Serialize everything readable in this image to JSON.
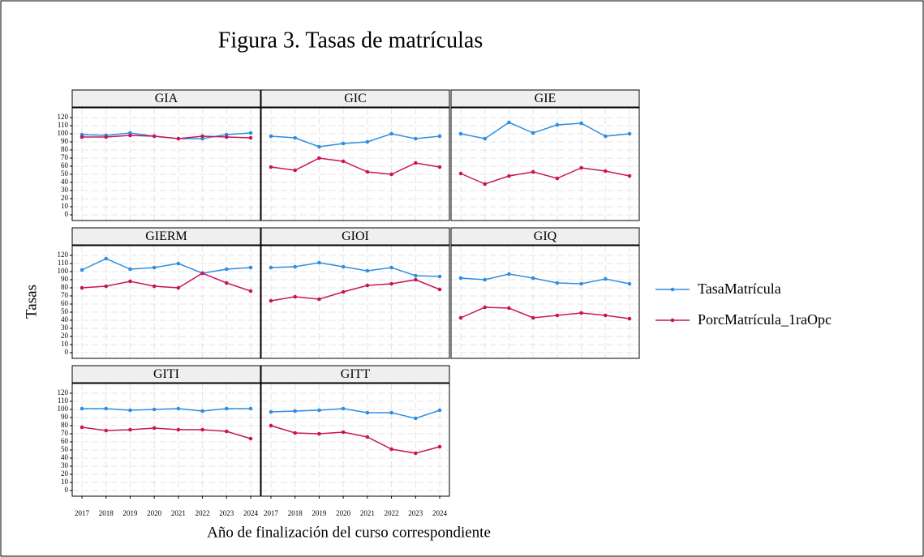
{
  "chart_data": {
    "type": "line",
    "title": "Figura 3. Tasas de matrículas",
    "x_label": "Año de finalización del curso correspondiente",
    "y_label": "Tasas",
    "categories": [
      "2017",
      "2018",
      "2019",
      "2020",
      "2021",
      "2022",
      "2023",
      "2024"
    ],
    "ylim": [
      -7,
      132
    ],
    "yticks": [
      0,
      10,
      20,
      30,
      40,
      50,
      60,
      70,
      80,
      90,
      100,
      110,
      120
    ],
    "grid": true,
    "legend": "right",
    "series_names": [
      "TasaMatrícula",
      "PorcMatrícula_1raOpc"
    ],
    "colors": [
      "#2e8ee0",
      "#c8155a"
    ],
    "panels": [
      {
        "title": "GIA",
        "values": [
          [
            99,
            98,
            101,
            97,
            94,
            94,
            99,
            101
          ],
          [
            96,
            96,
            98,
            97,
            94,
            97,
            96,
            95
          ]
        ]
      },
      {
        "title": "GIC",
        "values": [
          [
            97,
            95,
            84,
            88,
            90,
            100,
            94,
            97
          ],
          [
            59,
            55,
            70,
            66,
            53,
            50,
            64,
            59
          ]
        ]
      },
      {
        "title": "GIE",
        "values": [
          [
            100,
            94,
            114,
            101,
            111,
            113,
            97,
            100
          ],
          [
            51,
            38,
            48,
            53,
            45,
            58,
            54,
            48
          ]
        ]
      },
      {
        "title": "GIERM",
        "values": [
          [
            102,
            116,
            103,
            105,
            110,
            98,
            103,
            105
          ],
          [
            80,
            82,
            88,
            82,
            80,
            98,
            86,
            76
          ]
        ]
      },
      {
        "title": "GIOI",
        "values": [
          [
            105,
            106,
            111,
            106,
            101,
            105,
            95,
            94
          ],
          [
            64,
            69,
            66,
            75,
            83,
            85,
            90,
            78
          ]
        ]
      },
      {
        "title": "GIQ",
        "values": [
          [
            92,
            90,
            97,
            92,
            86,
            85,
            91,
            85
          ],
          [
            43,
            56,
            55,
            43,
            46,
            49,
            46,
            42
          ]
        ]
      },
      {
        "title": "GITI",
        "values": [
          [
            101,
            101,
            99,
            100,
            101,
            98,
            101,
            101
          ],
          [
            78,
            74,
            75,
            77,
            75,
            75,
            73,
            64
          ]
        ]
      },
      {
        "title": "GITT",
        "values": [
          [
            97,
            98,
            99,
            101,
            96,
            96,
            89,
            99
          ],
          [
            80,
            71,
            70,
            72,
            66,
            51,
            46,
            54
          ]
        ]
      }
    ]
  }
}
